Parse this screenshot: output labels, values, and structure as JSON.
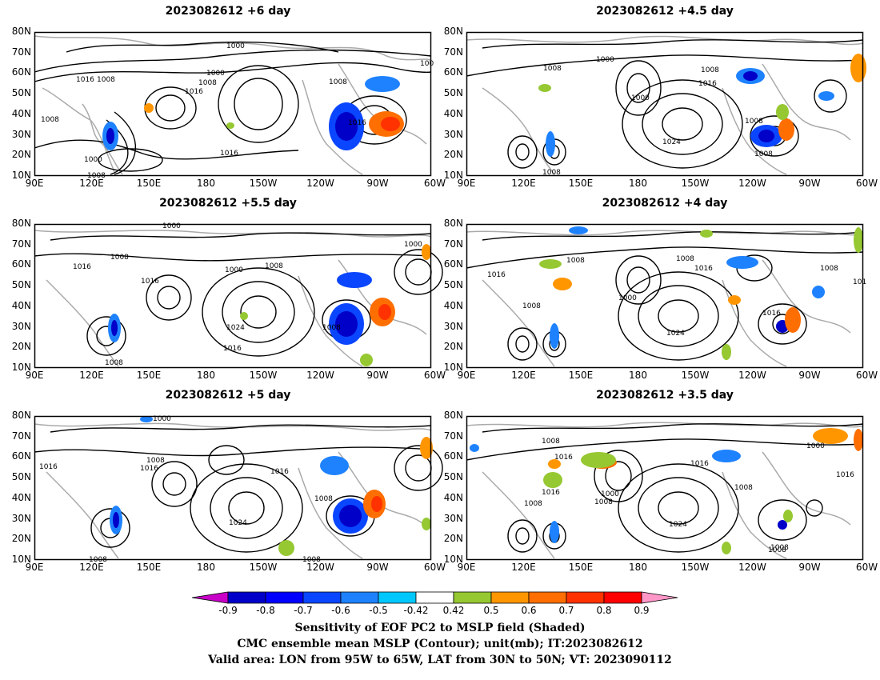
{
  "panels": [
    {
      "title": "2023082612  +6 day",
      "isobars": [
        "1000",
        "1016",
        "1008",
        "1000",
        "1008",
        "1016",
        "1008",
        "1016",
        "1016",
        "1000",
        "1008",
        "1008",
        "100"
      ]
    },
    {
      "title": "2023082612  +4.5 day",
      "isobars": [
        "1000",
        "1008",
        "1000",
        "1008",
        "1016",
        "1008",
        "1024",
        "1008",
        "1008"
      ]
    },
    {
      "title": "2023082612  +5.5 day",
      "isobars": [
        "1000",
        "1016",
        "1008",
        "1016",
        "1000",
        "1008",
        "1024",
        "1016",
        "1008",
        "1008",
        "1000"
      ]
    },
    {
      "title": "2023082612  +4 day",
      "isobars": [
        "1008",
        "1016",
        "1008",
        "1016",
        "1000",
        "1008",
        "1024",
        "1008",
        "1016",
        "101"
      ]
    },
    {
      "title": "2023082612  +5 day",
      "isobars": [
        "1000",
        "1016",
        "1008",
        "1016",
        "1016",
        "1024",
        "1008",
        "1008",
        "1008"
      ]
    },
    {
      "title": "2023082612  +3.5 day",
      "isobars": [
        "1008",
        "1016",
        "1016",
        "1000",
        "1008",
        "1008",
        "1016",
        "1008",
        "1016",
        "1024",
        "1008",
        "1000",
        "1008"
      ]
    }
  ],
  "lat_labels": [
    "80N",
    "70N",
    "60N",
    "50N",
    "40N",
    "30N",
    "20N",
    "10N"
  ],
  "lon_labels": [
    "90E",
    "120E",
    "150E",
    "180",
    "150W",
    "120W",
    "90W",
    "60W"
  ],
  "colorbar": {
    "ticks": [
      "-0.9",
      "-0.8",
      "-0.7",
      "-0.6",
      "-0.5",
      "-0.42",
      "0.42",
      "0.5",
      "0.6",
      "0.7",
      "0.8",
      "0.9"
    ],
    "colors": {
      "c1": "#c800c8",
      "c2": "#0000c8",
      "c3": "#0000ff",
      "c4": "#0a46ff",
      "c5": "#1e82ff",
      "c6": "#00c8ff",
      "c7": "#ffffff",
      "c8": "#96c832",
      "c9": "#ff9600",
      "c10": "#ff6e00",
      "c11": "#ff3200",
      "c12": "#ff0000",
      "c13": "#ff96c8"
    }
  },
  "caption": {
    "line1": "Sensitivity of EOF PC2 to MSLP field (Shaded)",
    "line2": "CMC ensemble mean MSLP (Contour); unit(mb); IT:2023082612",
    "line3": "Valid area: LON from 95W to 65W, LAT from 30N to 50N; VT: 2023090112"
  }
}
